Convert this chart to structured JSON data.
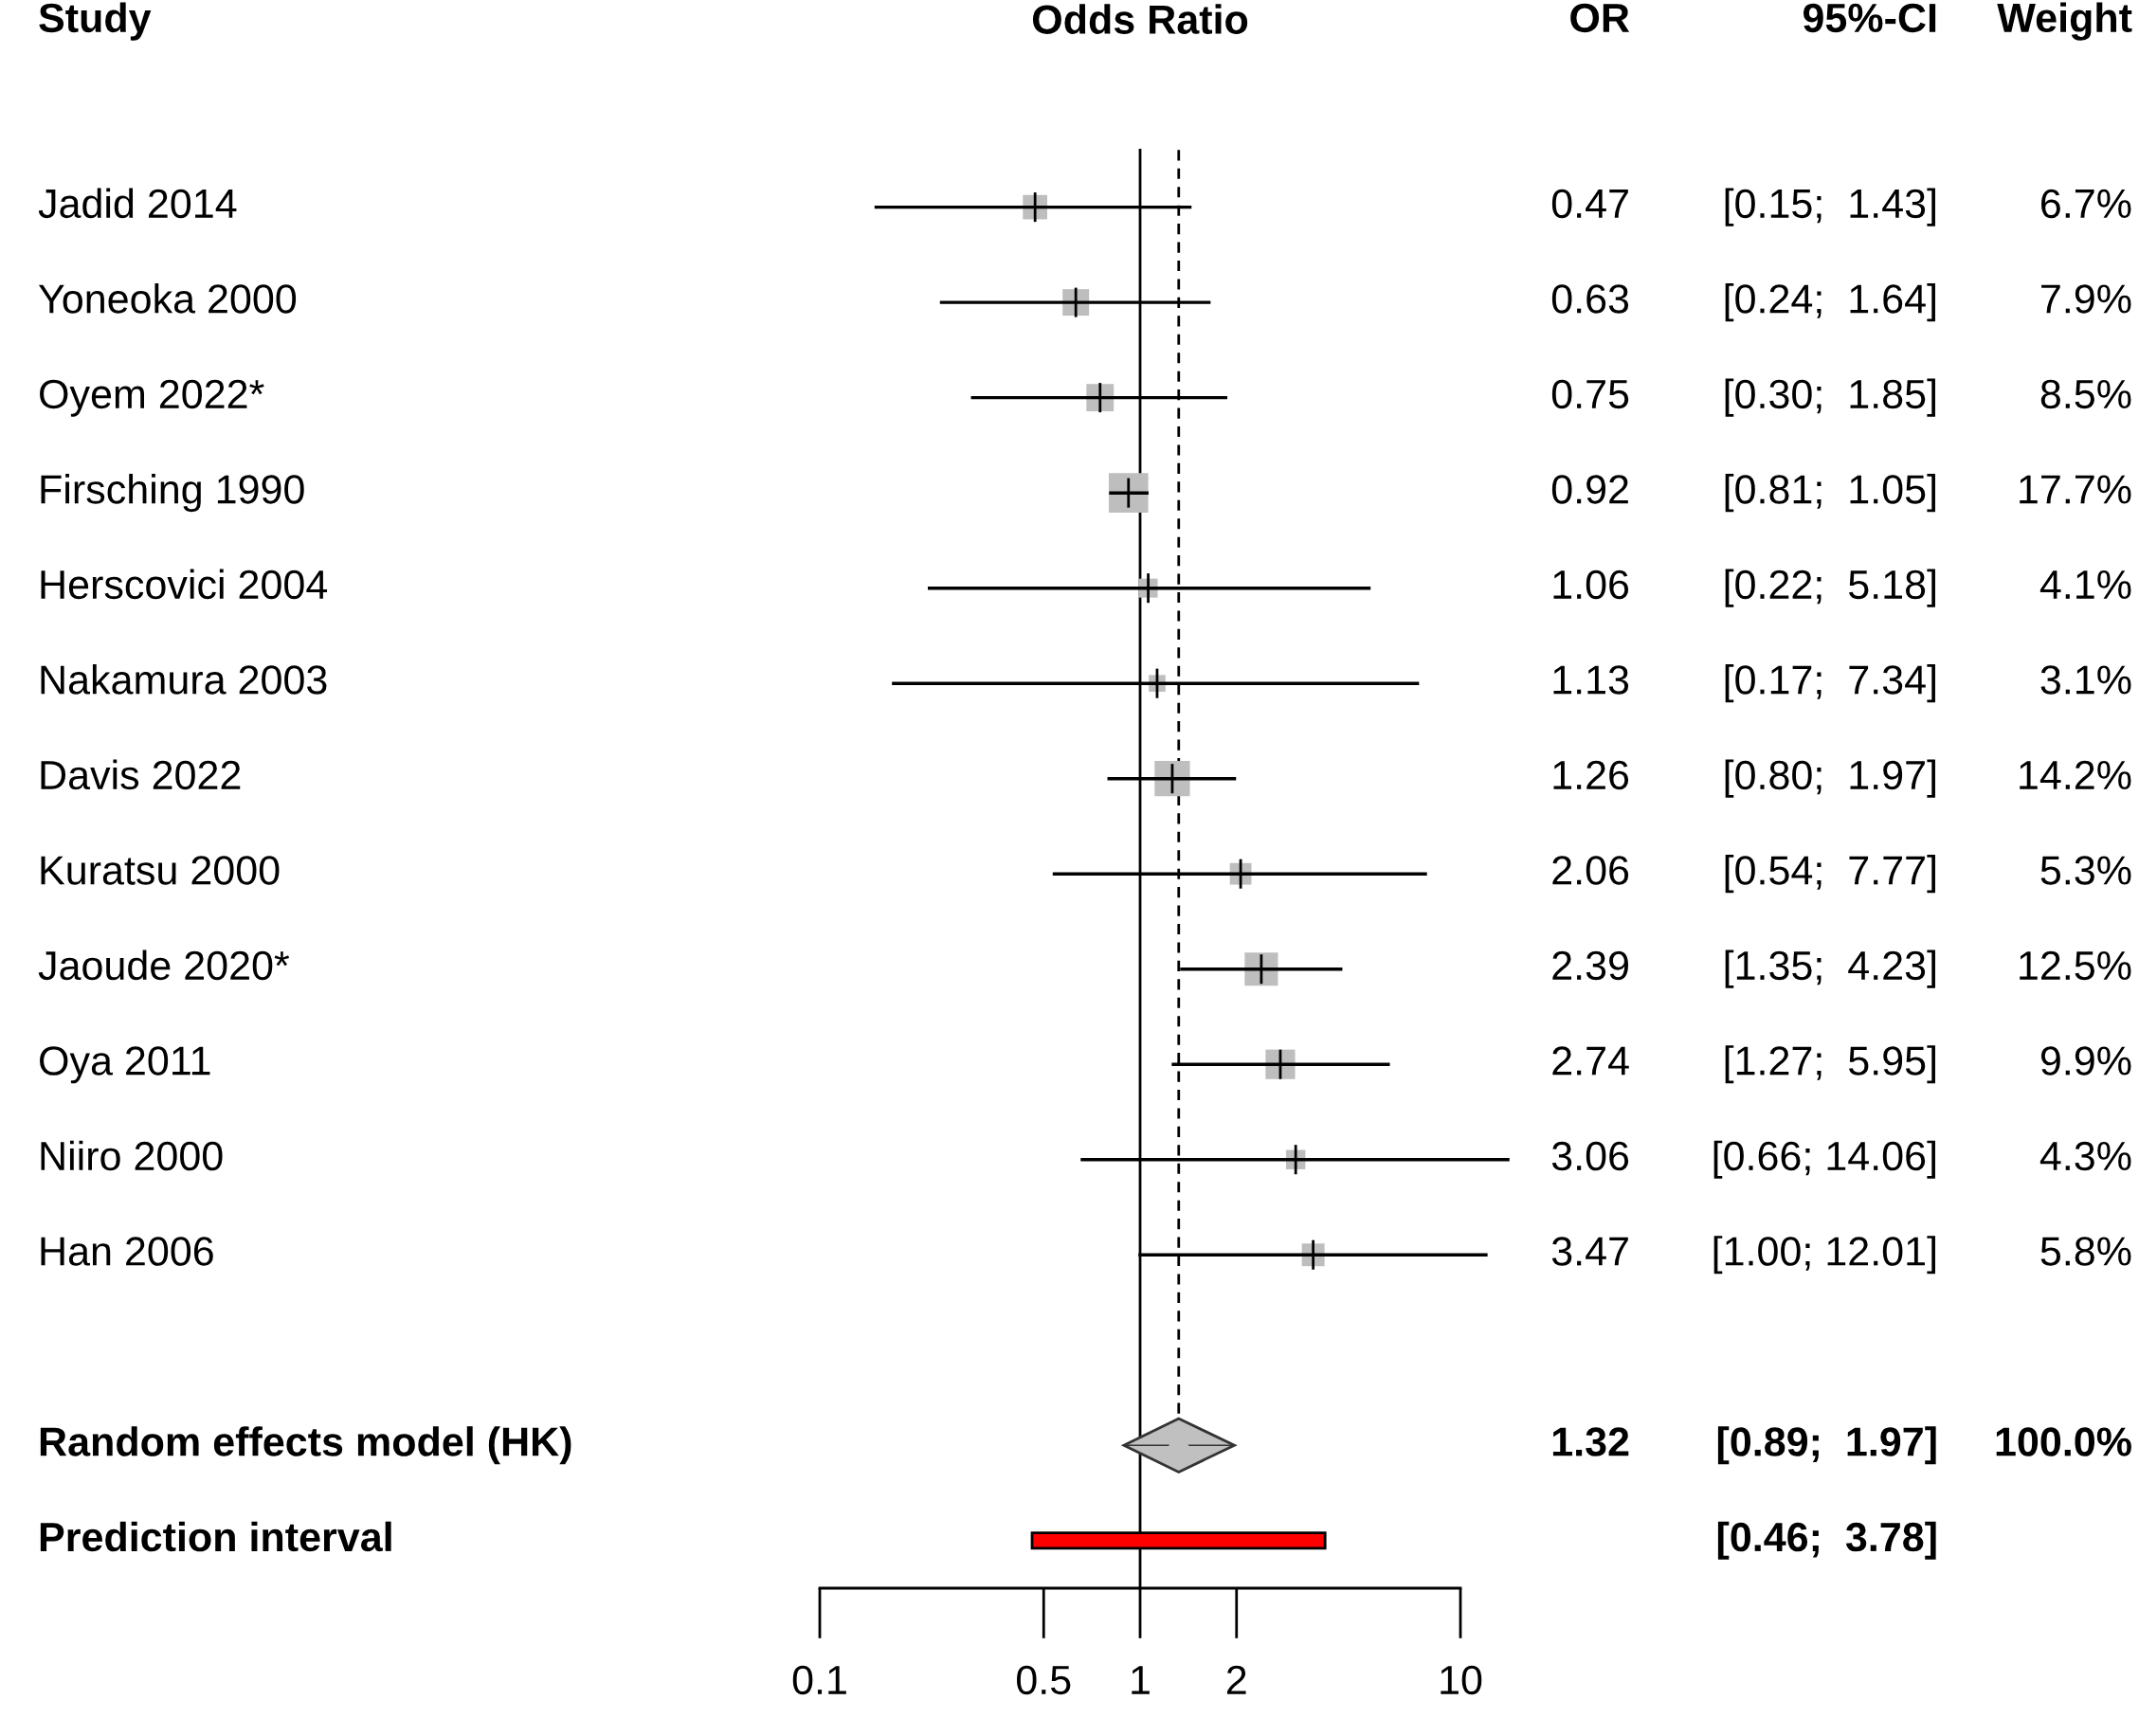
{
  "chart_data": {
    "type": "bubble",
    "orientation": "horizontal",
    "title": "Odds Ratio",
    "annotations": [
      "Study",
      "OR",
      "95%-CI",
      "Weight"
    ],
    "categories": [
      "Jadid 2014",
      "Yoneoka 2000",
      "Oyem 2022*",
      "Firsching 1990",
      "Herscovici 2004",
      "Nakamura 2003",
      "Davis 2022",
      "Kuratsu 2000",
      "Jaoude 2020*",
      "Oya 2011",
      "Niiro 2000",
      "Han 2006",
      null,
      "Random effects model (HK)",
      "Prediction interval"
    ],
    "log": "x",
    "xlim": [
      0.1,
      10
    ],
    "xticks": [
      0.1,
      0.5,
      1,
      2,
      10
    ],
    "ref_lines": [
      {
        "axis": "x",
        "value": 1,
        "color": "#000000",
        "line_style": "solid"
      },
      {
        "axis": "x",
        "value": 1.32,
        "color": "#000000",
        "line_style": "dashed"
      }
    ],
    "series": [
      {
        "marker": "square",
        "color": "#bebebe",
        "values": [
          0.47,
          0.63,
          0.75,
          0.92,
          1.06,
          1.13,
          1.26,
          2.06,
          2.39,
          2.74,
          3.06,
          3.47,
          null,
          null,
          null
        ],
        "errors": [
          [
            0.15,
            1.43
          ],
          [
            0.24,
            1.64
          ],
          [
            0.3,
            1.85
          ],
          [
            0.81,
            1.05
          ],
          [
            0.22,
            5.18
          ],
          [
            0.17,
            7.34
          ],
          [
            0.8,
            1.97
          ],
          [
            0.54,
            7.77
          ],
          [
            1.35,
            4.23
          ],
          [
            1.27,
            5.95
          ],
          [
            0.66,
            14.06
          ],
          [
            1.0,
            12.01
          ],
          null,
          null,
          null
        ],
        "sizes": [
          0.38,
          0.45,
          0.48,
          1,
          0.23,
          0.18,
          0.8,
          0.3,
          0.71,
          0.56,
          0.24,
          0.33,
          null,
          null,
          null
        ],
        "value_labels": [
          [
            "0.47",
            "[0.15;  1.43]",
            "6.7%"
          ],
          [
            "0.63",
            "[0.24;  1.64]",
            "7.9%"
          ],
          [
            "0.75",
            "[0.30;  1.85]",
            "8.5%"
          ],
          [
            "0.92",
            "[0.81;  1.05]",
            "17.7%"
          ],
          [
            "1.06",
            "[0.22;  5.18]",
            "4.1%"
          ],
          [
            "1.13",
            "[0.17;  7.34]",
            "3.1%"
          ],
          [
            "1.26",
            "[0.80;  1.97]",
            "14.2%"
          ],
          [
            "2.06",
            "[0.54;  7.77]",
            "5.3%"
          ],
          [
            "2.39",
            "[1.35;  4.23]",
            "12.5%"
          ],
          [
            "2.74",
            "[1.27;  5.95]",
            "9.9%"
          ],
          [
            "3.06",
            "[0.66; 14.06]",
            "4.3%"
          ],
          [
            "3.47",
            "[1.00; 12.01]",
            "5.8%"
          ],
          null,
          null,
          null
        ]
      },
      {
        "type": "scatter",
        "marker": "diamond",
        "color": "#c0c0c0",
        "values": [
          null,
          null,
          null,
          null,
          null,
          null,
          null,
          null,
          null,
          null,
          null,
          null,
          null,
          1.32,
          null
        ],
        "errors": [
          null,
          null,
          null,
          null,
          null,
          null,
          null,
          null,
          null,
          null,
          null,
          null,
          null,
          [
            0.89,
            1.97
          ],
          null
        ],
        "value_labels": [
          null,
          null,
          null,
          null,
          null,
          null,
          null,
          null,
          null,
          null,
          null,
          null,
          null,
          [
            "1.32",
            "[0.89;  1.97]",
            "100.0%"
          ],
          null
        ]
      },
      {
        "type": "bar",
        "color": "#ff0000",
        "values": [
          null,
          null,
          null,
          null,
          null,
          null,
          null,
          null,
          null,
          null,
          null,
          null,
          null,
          null,
          3.32
        ],
        "base": [
          null,
          null,
          null,
          null,
          null,
          null,
          null,
          null,
          null,
          null,
          null,
          null,
          null,
          null,
          0.46
        ],
        "value_labels": [
          null,
          null,
          null,
          null,
          null,
          null,
          null,
          null,
          null,
          null,
          null,
          null,
          null,
          null,
          [
            null,
            "[0.46;  3.78]",
            null
          ]
        ]
      }
    ]
  }
}
